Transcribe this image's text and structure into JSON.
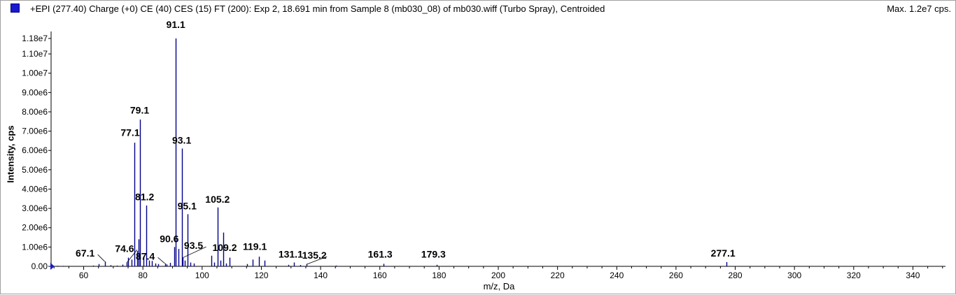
{
  "header": {
    "title": "+EPI (277.40) Charge (+0) CE (40) CES (15) FT (200): Exp 2, 18.691 min from Sample 8 (mb030_08) of mb030.wiff (Turbo Spray), Centroided",
    "max_label": "Max. 1.2e7 cps.",
    "legend_color": "#1a1ad0"
  },
  "chart_data": {
    "type": "bar",
    "title": "+EPI (277.40) Charge (+0) CE (40) CES (15) FT (200): Exp 2, 18.691 min from Sample 8 (mb030_08) of mb030.wiff (Turbo Spray), Centroided",
    "xlabel": "m/z, Da",
    "ylabel": "Intensity, cps",
    "xlim": [
      49,
      351
    ],
    "ylim": [
      0,
      11800000
    ],
    "x_ticks": [
      60,
      80,
      100,
      120,
      140,
      160,
      180,
      200,
      220,
      240,
      260,
      280,
      300,
      320,
      340
    ],
    "y_ticks": [
      {
        "value": 0,
        "label": "0.00"
      },
      {
        "value": 1000000,
        "label": "1.00e6"
      },
      {
        "value": 2000000,
        "label": "2.00e6"
      },
      {
        "value": 3000000,
        "label": "3.00e6"
      },
      {
        "value": 4000000,
        "label": "4.00e6"
      },
      {
        "value": 5000000,
        "label": "5.00e6"
      },
      {
        "value": 6000000,
        "label": "6.00e6"
      },
      {
        "value": 7000000,
        "label": "7.00e6"
      },
      {
        "value": 8000000,
        "label": "8.00e6"
      },
      {
        "value": 9000000,
        "label": "9.00e6"
      },
      {
        "value": 10000000,
        "label": "1.00e7"
      },
      {
        "value": 11000000,
        "label": "1.10e7"
      },
      {
        "value": 11800000,
        "label": "1.18e7"
      }
    ],
    "series_color": "#00008b",
    "peaks": [
      {
        "mz": 51.1,
        "intensity": 30000
      },
      {
        "mz": 53.1,
        "intensity": 25000
      },
      {
        "mz": 63.1,
        "intensity": 40000
      },
      {
        "mz": 65.1,
        "intensity": 120000
      },
      {
        "mz": 67.1,
        "intensity": 250000
      },
      {
        "mz": 69.1,
        "intensity": 60000
      },
      {
        "mz": 71.1,
        "intensity": 40000
      },
      {
        "mz": 73.1,
        "intensity": 90000
      },
      {
        "mz": 74.6,
        "intensity": 200000
      },
      {
        "mz": 75.1,
        "intensity": 450000
      },
      {
        "mz": 76.1,
        "intensity": 350000
      },
      {
        "mz": 77.1,
        "intensity": 6400000
      },
      {
        "mz": 78.1,
        "intensity": 800000
      },
      {
        "mz": 78.6,
        "intensity": 1400000
      },
      {
        "mz": 79.1,
        "intensity": 7600000
      },
      {
        "mz": 80.1,
        "intensity": 500000
      },
      {
        "mz": 81.2,
        "intensity": 3150000
      },
      {
        "mz": 82.1,
        "intensity": 300000
      },
      {
        "mz": 83.1,
        "intensity": 280000
      },
      {
        "mz": 84.1,
        "intensity": 150000
      },
      {
        "mz": 85.1,
        "intensity": 120000
      },
      {
        "mz": 87.4,
        "intensity": 150000
      },
      {
        "mz": 88.1,
        "intensity": 100000
      },
      {
        "mz": 89.1,
        "intensity": 180000
      },
      {
        "mz": 90.6,
        "intensity": 1000000
      },
      {
        "mz": 91.1,
        "intensity": 11800000
      },
      {
        "mz": 92.1,
        "intensity": 900000
      },
      {
        "mz": 93.1,
        "intensity": 6100000
      },
      {
        "mz": 93.5,
        "intensity": 450000
      },
      {
        "mz": 94.1,
        "intensity": 300000
      },
      {
        "mz": 95.1,
        "intensity": 2700000
      },
      {
        "mz": 96.1,
        "intensity": 200000
      },
      {
        "mz": 97.1,
        "intensity": 150000
      },
      {
        "mz": 103.1,
        "intensity": 550000
      },
      {
        "mz": 104.1,
        "intensity": 200000
      },
      {
        "mz": 105.2,
        "intensity": 3050000
      },
      {
        "mz": 106.1,
        "intensity": 300000
      },
      {
        "mz": 107.1,
        "intensity": 1750000
      },
      {
        "mz": 108.1,
        "intensity": 150000
      },
      {
        "mz": 109.2,
        "intensity": 450000
      },
      {
        "mz": 115.1,
        "intensity": 120000
      },
      {
        "mz": 117.1,
        "intensity": 350000
      },
      {
        "mz": 119.1,
        "intensity": 500000
      },
      {
        "mz": 121.1,
        "intensity": 300000
      },
      {
        "mz": 129.1,
        "intensity": 80000
      },
      {
        "mz": 131.1,
        "intensity": 200000
      },
      {
        "mz": 133.1,
        "intensity": 70000
      },
      {
        "mz": 135.2,
        "intensity": 100000
      },
      {
        "mz": 145.1,
        "intensity": 40000
      },
      {
        "mz": 161.3,
        "intensity": 130000
      },
      {
        "mz": 179.3,
        "intensity": 80000
      },
      {
        "mz": 277.1,
        "intensity": 220000
      }
    ],
    "annotations": [
      {
        "text": "91.1",
        "mz": 91.1,
        "intensity": 11800000,
        "label_mz": 91.1,
        "label_intensity": 12350000,
        "leader": false
      },
      {
        "text": "79.1",
        "mz": 79.1,
        "intensity": 7600000,
        "label_mz": 78.9,
        "label_intensity": 7900000,
        "leader": false
      },
      {
        "text": "77.1",
        "mz": 77.1,
        "intensity": 6400000,
        "label_mz": 75.7,
        "label_intensity": 6750000,
        "leader": false
      },
      {
        "text": "93.1",
        "mz": 93.1,
        "intensity": 6100000,
        "label_mz": 93.1,
        "label_intensity": 6350000,
        "leader": false
      },
      {
        "text": "81.2",
        "mz": 81.2,
        "intensity": 3150000,
        "label_mz": 80.6,
        "label_intensity": 3420000,
        "leader": false
      },
      {
        "text": "105.2",
        "mz": 105.2,
        "intensity": 3050000,
        "label_mz": 105.2,
        "label_intensity": 3300000,
        "leader": false
      },
      {
        "text": "95.1",
        "mz": 95.1,
        "intensity": 2700000,
        "label_mz": 94.9,
        "label_intensity": 2950000,
        "leader": false
      },
      {
        "text": "90.6",
        "mz": 90.6,
        "intensity": 1000000,
        "label_mz": 88.9,
        "label_intensity": 1250000,
        "leader": false
      },
      {
        "text": "93.5",
        "mz": 93.5,
        "intensity": 450000,
        "label_mz": 97.1,
        "label_intensity": 900000,
        "leader": true
      },
      {
        "text": "109.2",
        "mz": 109.2,
        "intensity": 450000,
        "label_mz": 107.6,
        "label_intensity": 800000,
        "leader": false
      },
      {
        "text": "119.1",
        "mz": 119.1,
        "intensity": 500000,
        "label_mz": 117.8,
        "label_intensity": 850000,
        "leader": false
      },
      {
        "text": "74.6",
        "mz": 74.6,
        "intensity": 200000,
        "label_mz": 73.8,
        "label_intensity": 750000,
        "leader": true
      },
      {
        "text": "87.4",
        "mz": 87.4,
        "intensity": 150000,
        "label_mz": 80.8,
        "label_intensity": 350000,
        "leader": true
      },
      {
        "text": "67.1",
        "mz": 67.1,
        "intensity": 250000,
        "label_mz": 60.5,
        "label_intensity": 500000,
        "leader": true
      },
      {
        "text": "131.1",
        "mz": 131.1,
        "intensity": 200000,
        "label_mz": 129.9,
        "label_intensity": 450000,
        "leader": false
      },
      {
        "text": "135.2",
        "mz": 135.2,
        "intensity": 100000,
        "label_mz": 137.9,
        "label_intensity": 400000,
        "leader": true
      },
      {
        "text": "161.3",
        "mz": 161.3,
        "intensity": 130000,
        "label_mz": 160.1,
        "label_intensity": 450000,
        "leader": false
      },
      {
        "text": "179.3",
        "mz": 179.3,
        "intensity": 80000,
        "label_mz": 178.1,
        "label_intensity": 450000,
        "leader": false
      },
      {
        "text": "277.1",
        "mz": 277.1,
        "intensity": 220000,
        "label_mz": 275.9,
        "label_intensity": 500000,
        "leader": false
      }
    ]
  }
}
